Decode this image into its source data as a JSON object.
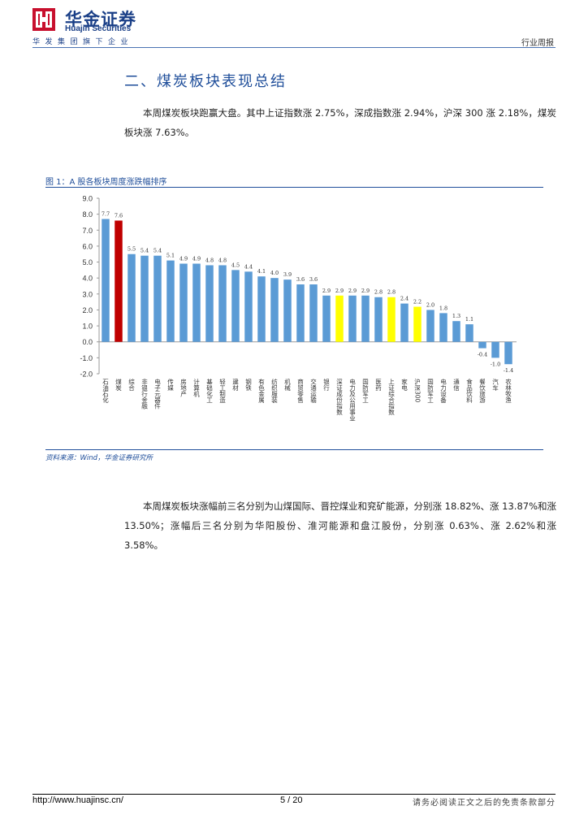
{
  "header": {
    "logo_cn": "华金证券",
    "logo_en": "Huajin Securities",
    "logo_tagline": "华发集团旗下企业",
    "doc_type": "行业周报"
  },
  "section": {
    "title": "二、煤炭板块表现总结"
  },
  "para1": "本周煤炭板块跑赢大盘。其中上证指数涨 2.75%，深成指数涨 2.94%，沪深 300 涨 2.18%，煤炭板块涨 7.63%。",
  "figure": {
    "caption": "图 1：A 股各板块周度涨跌幅排序",
    "source": "资料来源：Wind，华金证券研究所"
  },
  "para2": "本周煤炭板块涨幅前三名分别为山煤国际、晋控煤业和兖矿能源，分别涨 18.82%、涨 13.87%和涨 13.50%；涨幅后三名分别为华阳股份、淮河能源和盘江股份，分别涨 0.63%、涨 2.62%和涨 3.58%。",
  "footer": {
    "url": "http://www.huajinsc.cn/",
    "page": "5 / 20",
    "disclaimer": "请务必阅读正文之后的免责条款部分"
  },
  "colors": {
    "bar_default": "#5b9bd5",
    "bar_highlight_coal": "#c00000",
    "bar_highlight_index": "#ffff00",
    "accent": "#1f4e9a"
  },
  "chart_data": {
    "type": "bar",
    "title": "",
    "xlabel": "",
    "ylabel": "",
    "ylim": [
      -2,
      9
    ],
    "yticks": [
      "9.0",
      "8.0",
      "7.0",
      "6.0",
      "5.0",
      "4.0",
      "3.0",
      "2.0",
      "1.0",
      "0.0",
      "-1.0",
      "-2.0"
    ],
    "grid": false,
    "categories": [
      "石油石化",
      "煤炭",
      "综合",
      "非银行金融",
      "电子元器件",
      "传媒",
      "房地产",
      "计算机",
      "基础化工",
      "轻工制造",
      "建材",
      "钢铁",
      "有色金属",
      "纺织服装",
      "机械",
      "商贸零售",
      "交通运输",
      "银行",
      "深证成份指数",
      "电力及公用事业",
      "国防军工",
      "医药",
      "上证综合指数",
      "家电",
      "沪深300",
      "国防军工",
      "电力设备",
      "通信",
      "食品饮料",
      "餐饮旅游",
      "汽车",
      "农林牧渔"
    ],
    "values": [
      7.7,
      7.6,
      5.5,
      5.4,
      5.4,
      5.1,
      4.9,
      4.9,
      4.8,
      4.8,
      4.5,
      4.4,
      4.1,
      4.0,
      3.9,
      3.6,
      3.6,
      2.9,
      2.9,
      2.9,
      2.9,
      2.8,
      2.8,
      2.4,
      2.2,
      2.0,
      1.8,
      1.3,
      1.1,
      -0.4,
      -1.0,
      -1.4
    ],
    "value_labels": [
      "7.7",
      "7.6",
      "5.5",
      "5.4",
      "5.4",
      "5.1",
      "4.9",
      "4.9",
      "4.8",
      "4.8",
      "4.5",
      "4.4",
      "4.1",
      "4.0",
      "3.9",
      "3.6",
      "3.6",
      "2.9",
      "2.9",
      "2.9",
      "2.9",
      "2.8",
      "2.8",
      "2.4",
      "2.2",
      "2.0",
      "1.8",
      "1.3",
      "1.1",
      "-0.4",
      "-1.0",
      "-1.4"
    ],
    "highlight_coal": [
      1
    ],
    "highlight_index": [
      18,
      22,
      24
    ]
  }
}
